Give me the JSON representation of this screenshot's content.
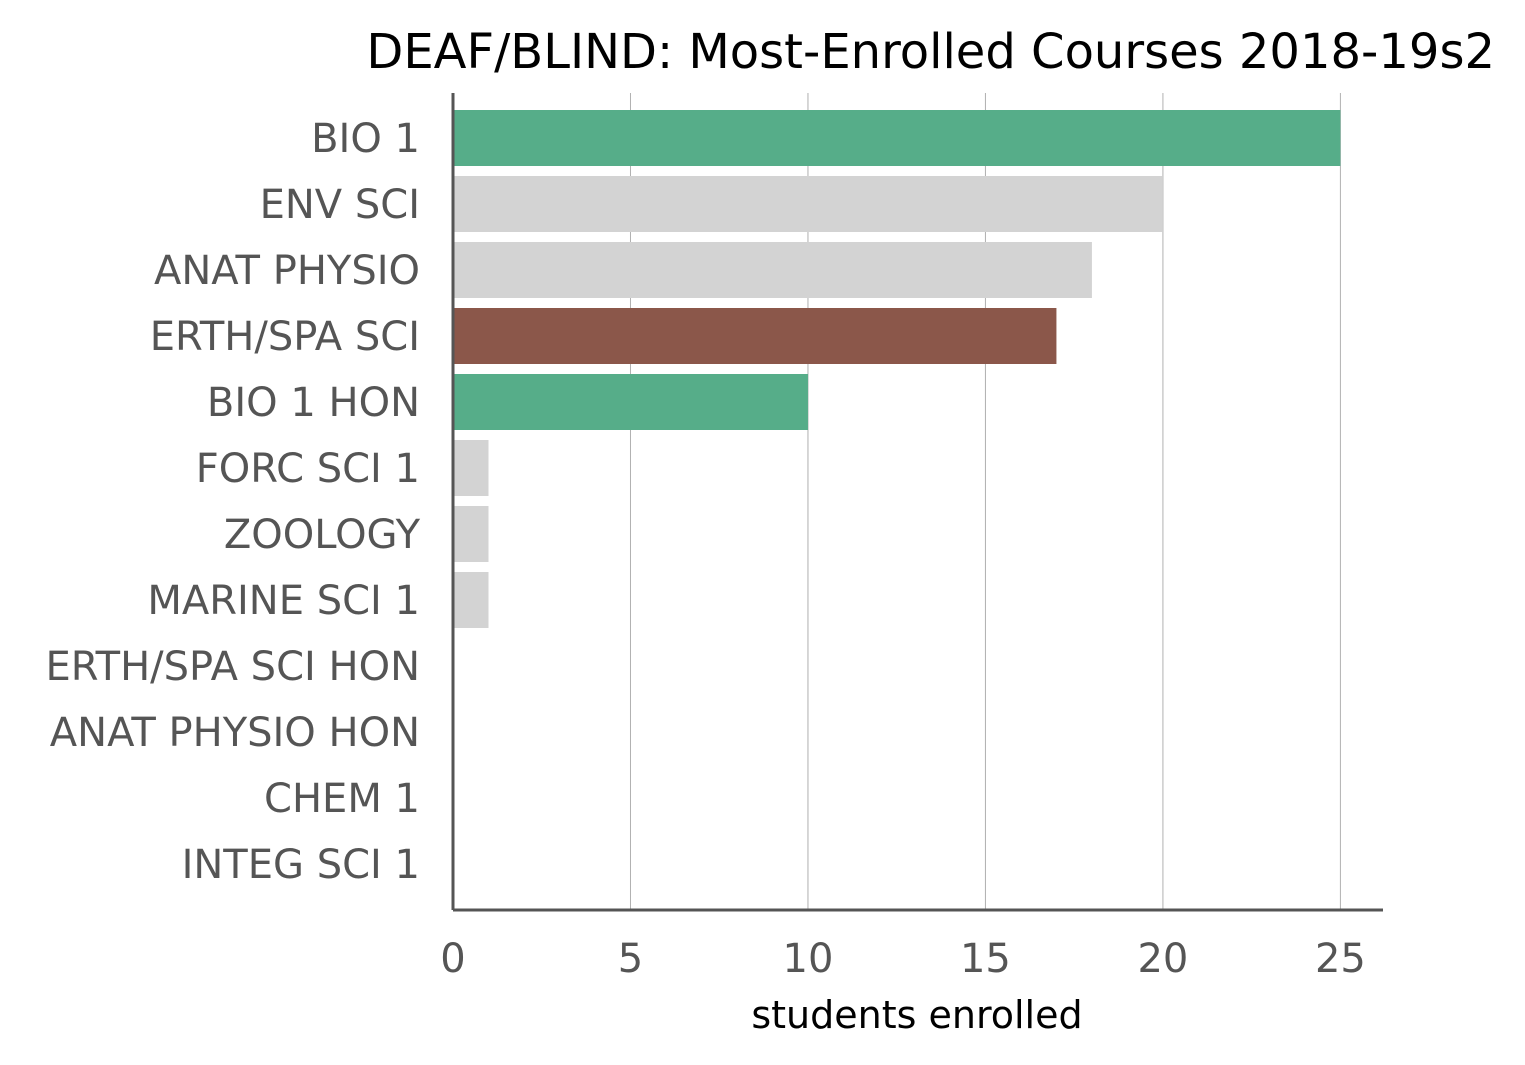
{
  "chart_data": {
    "type": "bar",
    "orientation": "horizontal",
    "title": "DEAF/BLIND: Most-Enrolled Courses 2018-19s2",
    "xlabel": "students enrolled",
    "ylabel": "",
    "xlim": [
      0,
      26.2
    ],
    "xticks": [
      0,
      5,
      10,
      15,
      20,
      25
    ],
    "grid": "vertical",
    "categories": [
      "BIO 1",
      "ENV SCI",
      "ANAT PHYSIO",
      "ERTH/SPA SCI",
      "BIO 1 HON",
      "FORC SCI 1",
      "ZOOLOGY",
      "MARINE SCI 1",
      "ERTH/SPA SCI HON",
      "ANAT PHYSIO HON",
      "CHEM 1",
      "INTEG SCI 1"
    ],
    "values": [
      25,
      20,
      18,
      17,
      10,
      1,
      1,
      1,
      0,
      0,
      0,
      0
    ],
    "colors": [
      "#56ad89",
      "#d3d3d3",
      "#d3d3d3",
      "#8b574a",
      "#56ad89",
      "#d3d3d3",
      "#d3d3d3",
      "#d3d3d3",
      "#d3d3d3",
      "#d3d3d3",
      "#d3d3d3",
      "#d3d3d3"
    ]
  }
}
